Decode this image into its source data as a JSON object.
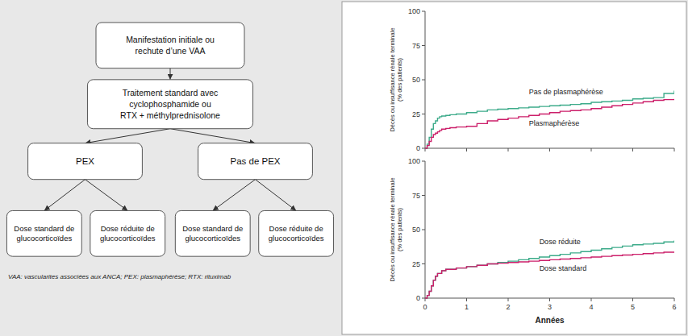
{
  "chart_data": [
    {
      "type": "flowchart",
      "annotations": [
        "Manifestation initiale ou\nrechute d’une VAA",
        "Traitement standard avec\ncyclophosphamide ou\nRTX + méthylprednisolone",
        "PEX",
        "Pas de PEX",
        "Dose standard de\nglucocorticoïdes",
        "Dose réduite de\nglucocorticoïdes",
        "Dose standard de\nglucocorticoïdes",
        "Dose réduite de\nglucocorticoïdes",
        "VAA: vascularites associées aux ANCA; PEX: plasmaphérèse; RTX: rituximab"
      ]
    },
    {
      "type": "line",
      "line_style": "step",
      "y_label": "Décès ou insuffisance rénale terminale\n(% des patients)",
      "ylim": [
        0,
        100
      ],
      "yticks": [
        0,
        25,
        50,
        75,
        100
      ],
      "xlim": [
        0,
        6
      ],
      "xticks": [
        0,
        1,
        2,
        3,
        4,
        5,
        6
      ],
      "tick_labels": "y",
      "grid": false,
      "x": [
        0,
        0.05,
        0.1,
        0.15,
        0.2,
        0.25,
        0.3,
        0.35,
        0.4,
        0.5,
        0.6,
        0.75,
        1.0,
        1.25,
        1.5,
        1.75,
        2.0,
        2.25,
        2.5,
        2.75,
        3.0,
        3.25,
        3.5,
        3.75,
        4.0,
        4.25,
        4.5,
        4.75,
        5.0,
        5.25,
        5.5,
        5.75,
        6.0
      ],
      "series": [
        {
          "name": "Pas de plasmaphérèse",
          "color": "#3dab8a",
          "values": [
            0,
            3,
            8,
            14,
            18,
            20,
            22,
            23,
            23.5,
            24,
            24.5,
            25,
            26,
            27,
            28,
            28.5,
            29,
            29.5,
            30,
            30.5,
            31,
            31.5,
            32,
            32.5,
            33.5,
            34,
            34.5,
            35,
            36,
            36.5,
            37,
            40,
            42
          ]
        },
        {
          "name": "Plasmaphérèse",
          "color": "#cc1f6a",
          "values": [
            0,
            2,
            5,
            8,
            10,
            11,
            12,
            13,
            14,
            14.5,
            15,
            15.5,
            16,
            18,
            20,
            21,
            22,
            23,
            24,
            25,
            26,
            27,
            27.5,
            28,
            29,
            30,
            31,
            32,
            33,
            34,
            35,
            35.5,
            36
          ]
        }
      ]
    },
    {
      "type": "line",
      "line_style": "step",
      "y_label": "Décès ou insuffisance rénale terminale\n(% des patients)",
      "x_label": "Années",
      "ylim": [
        0,
        100
      ],
      "yticks": [
        0,
        25,
        50,
        75,
        100
      ],
      "xlim": [
        0,
        6
      ],
      "xticks": [
        0,
        1,
        2,
        3,
        4,
        5,
        6
      ],
      "grid": false,
      "x": [
        0,
        0.05,
        0.1,
        0.15,
        0.2,
        0.25,
        0.3,
        0.4,
        0.5,
        0.75,
        1.0,
        1.25,
        1.5,
        1.75,
        2.0,
        2.25,
        2.5,
        2.75,
        3.0,
        3.25,
        3.5,
        3.75,
        4.0,
        4.25,
        4.5,
        4.75,
        5.0,
        5.25,
        5.5,
        5.75,
        6.0
      ],
      "series": [
        {
          "name": "Dose réduite",
          "color": "#3dab8a",
          "values": [
            0,
            2,
            5,
            9,
            13,
            16,
            18,
            20,
            21,
            22,
            23,
            24,
            25,
            26,
            27,
            28,
            29,
            30,
            31,
            32,
            33,
            34,
            35,
            36,
            37,
            38,
            39,
            39.5,
            40,
            41,
            42
          ]
        },
        {
          "name": "Dose standard",
          "color": "#cc1f6a",
          "values": [
            0,
            2,
            5,
            9,
            13,
            16,
            18,
            20,
            21,
            22,
            23,
            24,
            25,
            25.5,
            26,
            26.5,
            27,
            27.5,
            28,
            28.5,
            29,
            29.5,
            30,
            30.5,
            31,
            31.5,
            32,
            32.5,
            33,
            33.5,
            34
          ]
        }
      ]
    }
  ]
}
